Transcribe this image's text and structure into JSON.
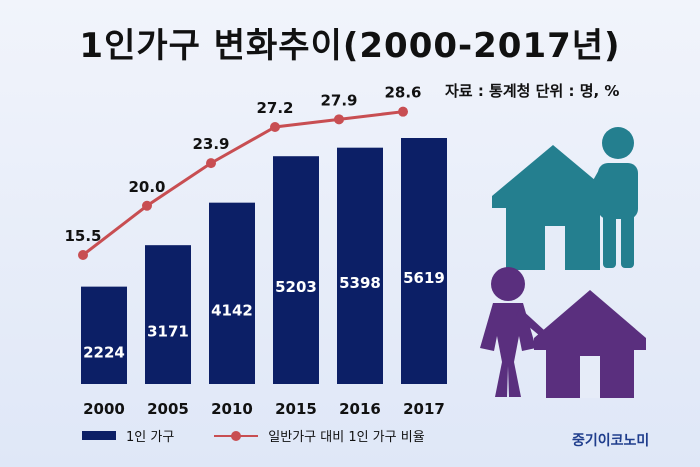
{
  "title": "1인가구  변화추이(2000-2017년)",
  "source": "자료 : 통계청 단위 : 명, %",
  "brand": "중기이코노미",
  "colors": {
    "bar": "#0c1f66",
    "line": "#c84e52",
    "icon_teal": "#247f8f",
    "icon_purple": "#5a2f7e"
  },
  "icons": [
    "house-person-icon",
    "person-house-icon"
  ],
  "chart_data": {
    "type": "bar",
    "categories": [
      "2000",
      "2005",
      "2010",
      "2015",
      "2016",
      "2017"
    ],
    "series": [
      {
        "name": "1인 가구",
        "type": "bar",
        "values": [
          2224,
          3171,
          4142,
          5203,
          5398,
          5619
        ]
      },
      {
        "name": "일반가구 대비 1인 가구 비율",
        "type": "line",
        "values": [
          15.5,
          20.0,
          23.9,
          27.2,
          27.9,
          28.6
        ]
      }
    ],
    "legend": "bottom-left",
    "grid": false
  }
}
